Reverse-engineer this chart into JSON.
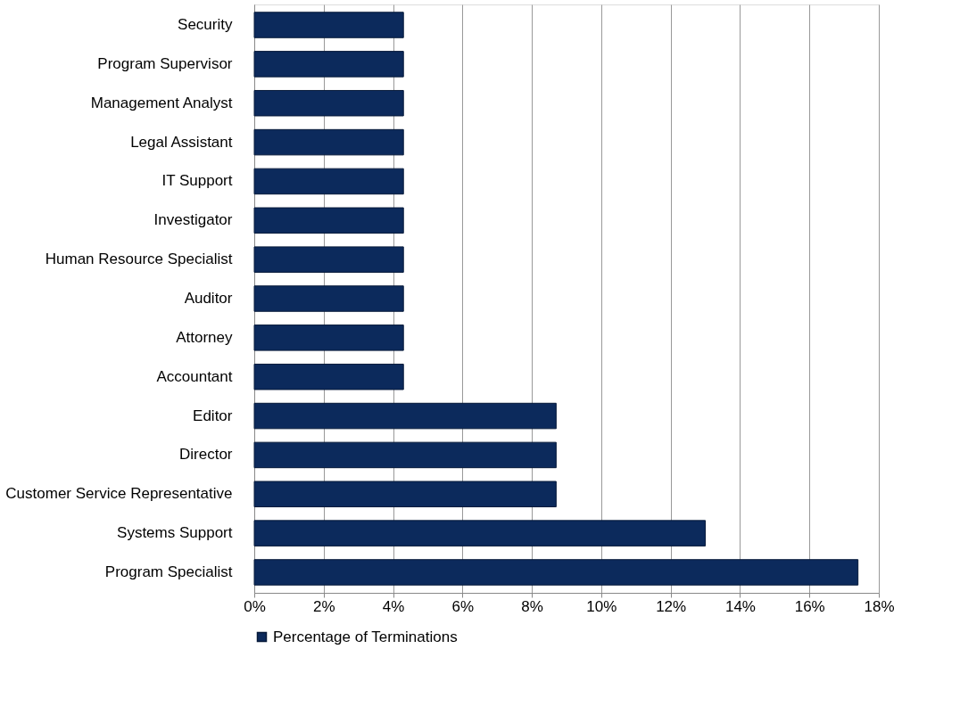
{
  "chart_data": {
    "type": "bar",
    "orientation": "horizontal",
    "categories": [
      "Security",
      "Program Supervisor",
      "Management Analyst",
      "Legal Assistant",
      "IT Support",
      "Investigator",
      "Human Resource Specialist",
      "Auditor",
      "Attorney",
      "Accountant",
      "Editor",
      "Director",
      "Customer Service Representative",
      "Systems Support",
      "Program Specialist"
    ],
    "series": [
      {
        "name": "Percentage of Terminations",
        "color": "#0c2a5c",
        "values": [
          4.3,
          4.3,
          4.3,
          4.3,
          4.3,
          4.3,
          4.3,
          4.3,
          4.3,
          4.3,
          8.7,
          8.7,
          8.7,
          13.0,
          17.4
        ]
      }
    ],
    "xlim": [
      0,
      18
    ],
    "xticks": [
      {
        "value": 0,
        "label": "0%"
      },
      {
        "value": 2,
        "label": "2%"
      },
      {
        "value": 4,
        "label": "4%"
      },
      {
        "value": 6,
        "label": "6%"
      },
      {
        "value": 8,
        "label": "8%"
      },
      {
        "value": 10,
        "label": "10%"
      },
      {
        "value": 12,
        "label": "12%"
      },
      {
        "value": 14,
        "label": "14%"
      },
      {
        "value": 16,
        "label": "16%"
      },
      {
        "value": 18,
        "label": "18%"
      }
    ],
    "grid": "x",
    "legend": "bottom"
  }
}
